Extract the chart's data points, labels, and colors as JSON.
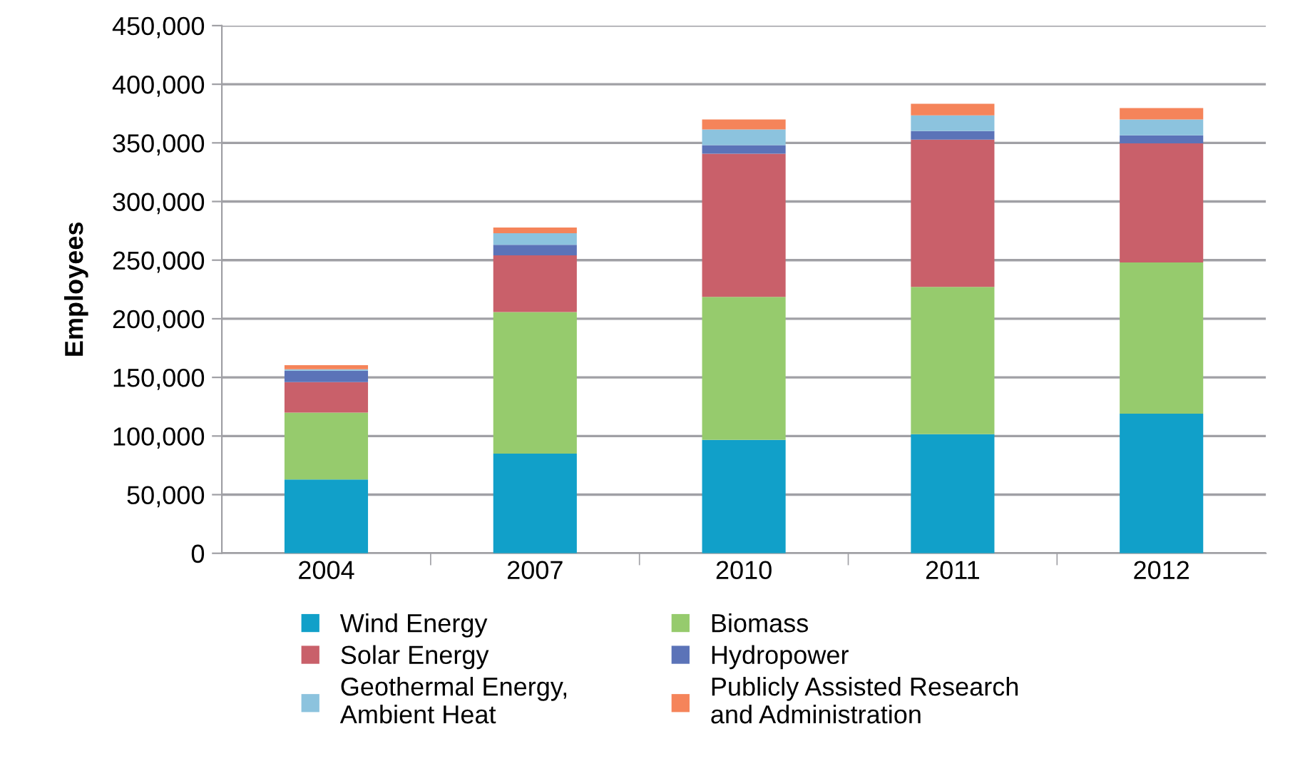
{
  "chart_data": {
    "type": "bar",
    "stacked": true,
    "ylabel": "Employees",
    "categories": [
      "2004",
      "2007",
      "2010",
      "2011",
      "2012"
    ],
    "series": [
      {
        "name": "Wind Energy",
        "color": "#11a0c9",
        "values": [
          63000,
          85000,
          96700,
          101600,
          119100
        ]
      },
      {
        "name": "Biomass",
        "color": "#96cb6d",
        "values": [
          57000,
          120700,
          122000,
          125600,
          128900
        ]
      },
      {
        "name": "Solar Energy",
        "color": "#c9606a",
        "values": [
          26000,
          48400,
          122000,
          125600,
          101600
        ]
      },
      {
        "name": "Hydropower",
        "color": "#5b73b8",
        "values": [
          9700,
          9000,
          7300,
          7300,
          6900
        ]
      },
      {
        "name": "Geothermal Energy,\nAmbient Heat",
        "color": "#8cc3de",
        "values": [
          1200,
          9800,
          13400,
          13400,
          13400
        ]
      },
      {
        "name": "Publicly Assisted Research\nand Administration",
        "color": "#f5845a",
        "values": [
          3500,
          4900,
          8500,
          9800,
          9800
        ]
      }
    ],
    "ylim": [
      0,
      450000
    ],
    "yticks": [
      {
        "value": 0,
        "label": "0"
      },
      {
        "value": 50000,
        "label": "50,000"
      },
      {
        "value": 100000,
        "label": "100,000"
      },
      {
        "value": 150000,
        "label": "150,000"
      },
      {
        "value": 200000,
        "label": "200,000"
      },
      {
        "value": 250000,
        "label": "250,000"
      },
      {
        "value": 300000,
        "label": "300,000"
      },
      {
        "value": 350000,
        "label": "350,000"
      },
      {
        "value": 400000,
        "label": "400,000"
      },
      {
        "value": 450000,
        "label": "450,000"
      }
    ],
    "grid": "y",
    "legend": "bottom"
  }
}
